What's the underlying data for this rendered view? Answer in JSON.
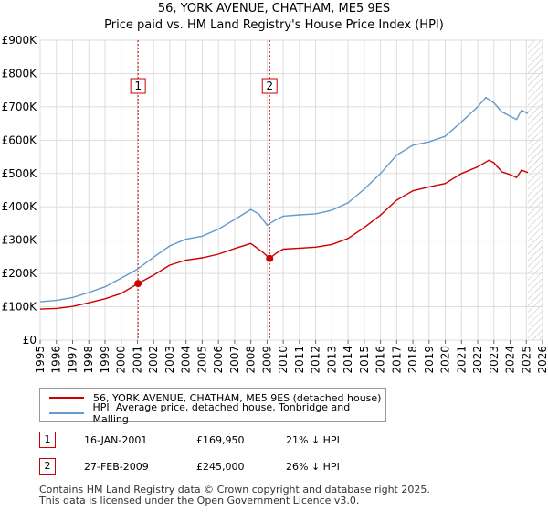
{
  "title": "56, YORK AVENUE, CHATHAM, ME5 9ES",
  "subtitle": "Price paid vs. HM Land Registry's House Price Index (HPI)",
  "chart_data": {
    "type": "line",
    "title": "56, YORK AVENUE, CHATHAM, ME5 9ES",
    "subtitle": "Price paid vs. HM Land Registry's House Price Index (HPI)",
    "xlim": [
      1995,
      2026
    ],
    "ylim": [
      0,
      900000
    ],
    "x_ticks": [
      "1995",
      "1996",
      "1997",
      "1998",
      "1999",
      "2000",
      "2001",
      "2002",
      "2003",
      "2004",
      "2005",
      "2006",
      "2007",
      "2008",
      "2009",
      "2010",
      "2011",
      "2012",
      "2013",
      "2014",
      "2015",
      "2016",
      "2017",
      "2018",
      "2019",
      "2020",
      "2021",
      "2022",
      "2023",
      "2024",
      "2025",
      "2026"
    ],
    "y_ticks": [
      {
        "value": 0,
        "label": "£0"
      },
      {
        "value": 100000,
        "label": "£100K"
      },
      {
        "value": 200000,
        "label": "£200K"
      },
      {
        "value": 300000,
        "label": "£300K"
      },
      {
        "value": 400000,
        "label": "£400K"
      },
      {
        "value": 500000,
        "label": "£500K"
      },
      {
        "value": 600000,
        "label": "£600K"
      },
      {
        "value": 700000,
        "label": "£700K"
      },
      {
        "value": 800000,
        "label": "£800K"
      },
      {
        "value": 900000,
        "label": "£900K"
      }
    ],
    "grid": true,
    "forecast_from": 2025.1,
    "series": [
      {
        "name": "56, YORK AVENUE, CHATHAM, ME5 9ES (detached house)",
        "color": "#cc0000",
        "points": [
          [
            1995,
            93000
          ],
          [
            1996,
            95000
          ],
          [
            1997,
            101000
          ],
          [
            1998,
            112000
          ],
          [
            1999,
            124000
          ],
          [
            2000,
            140000
          ],
          [
            2001.04,
            169950
          ],
          [
            2002,
            195000
          ],
          [
            2003,
            225000
          ],
          [
            2004,
            240000
          ],
          [
            2005,
            247000
          ],
          [
            2006,
            258000
          ],
          [
            2007,
            275000
          ],
          [
            2008,
            290000
          ],
          [
            2008.7,
            265000
          ],
          [
            2009.16,
            245000
          ],
          [
            2009.6,
            262000
          ],
          [
            2010,
            273000
          ],
          [
            2011,
            276000
          ],
          [
            2012,
            279000
          ],
          [
            2013,
            287000
          ],
          [
            2014,
            305000
          ],
          [
            2015,
            338000
          ],
          [
            2016,
            375000
          ],
          [
            2017,
            420000
          ],
          [
            2018,
            448000
          ],
          [
            2019,
            460000
          ],
          [
            2020,
            470000
          ],
          [
            2021,
            500000
          ],
          [
            2022,
            520000
          ],
          [
            2022.7,
            540000
          ],
          [
            2023,
            532000
          ],
          [
            2023.5,
            505000
          ],
          [
            2024,
            497000
          ],
          [
            2024.4,
            488000
          ],
          [
            2024.7,
            510000
          ],
          [
            2025.1,
            503000
          ]
        ]
      },
      {
        "name": "HPI: Average price, detached house, Tonbridge and Malling",
        "color": "#6699cc",
        "points": [
          [
            1995,
            115000
          ],
          [
            1996,
            119000
          ],
          [
            1997,
            128000
          ],
          [
            1998,
            143000
          ],
          [
            1999,
            160000
          ],
          [
            2000,
            186000
          ],
          [
            2001,
            213000
          ],
          [
            2002,
            249000
          ],
          [
            2003,
            283000
          ],
          [
            2004,
            303000
          ],
          [
            2005,
            312000
          ],
          [
            2006,
            333000
          ],
          [
            2007,
            362000
          ],
          [
            2008,
            392000
          ],
          [
            2008.5,
            378000
          ],
          [
            2009,
            345000
          ],
          [
            2009.5,
            360000
          ],
          [
            2010,
            372000
          ],
          [
            2011,
            376000
          ],
          [
            2012,
            379000
          ],
          [
            2013,
            390000
          ],
          [
            2014,
            412000
          ],
          [
            2015,
            453000
          ],
          [
            2016,
            500000
          ],
          [
            2017,
            555000
          ],
          [
            2018,
            585000
          ],
          [
            2019,
            595000
          ],
          [
            2020,
            612000
          ],
          [
            2021,
            655000
          ],
          [
            2022,
            700000
          ],
          [
            2022.5,
            728000
          ],
          [
            2023,
            712000
          ],
          [
            2023.5,
            685000
          ],
          [
            2024,
            672000
          ],
          [
            2024.4,
            662000
          ],
          [
            2024.7,
            690000
          ],
          [
            2025.1,
            680000
          ]
        ]
      }
    ],
    "transactions": [
      {
        "label": "1",
        "x": 2001.04,
        "price": 169950
      },
      {
        "label": "2",
        "x": 2009.16,
        "price": 245000
      }
    ]
  },
  "legend": {
    "items": [
      {
        "label": "56, YORK AVENUE, CHATHAM, ME5 9ES (detached house)",
        "color": "#cc0000"
      },
      {
        "label": "HPI: Average price, detached house, Tonbridge and Malling",
        "color": "#6699cc"
      }
    ]
  },
  "transactions_table": [
    {
      "num": "1",
      "date": "16-JAN-2001",
      "price": "£169,950",
      "hpi": "21% ↓ HPI"
    },
    {
      "num": "2",
      "date": "27-FEB-2009",
      "price": "£245,000",
      "hpi": "26% ↓ HPI"
    }
  ],
  "footer": {
    "line1": "Contains HM Land Registry data © Crown copyright and database right 2025.",
    "line2": "This data is licensed under the Open Government Licence v3.0."
  }
}
